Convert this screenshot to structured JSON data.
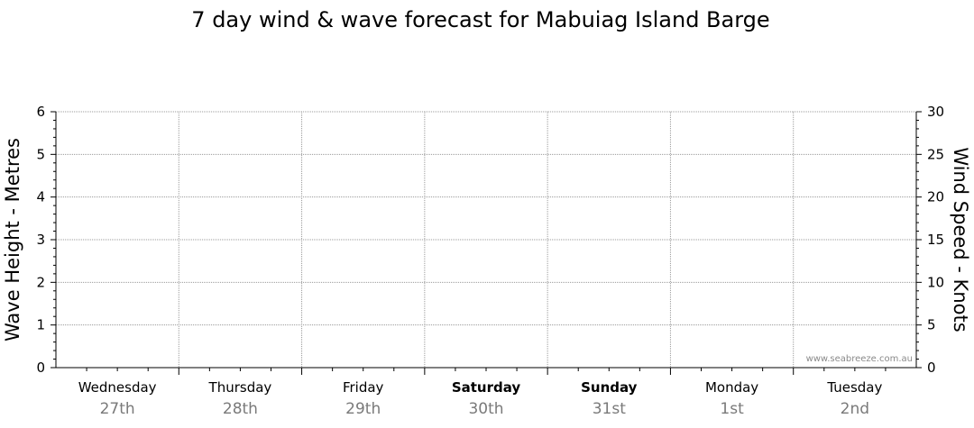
{
  "chart_data": {
    "type": "line",
    "title": "7 day wind & wave forecast for Mabuiag Island Barge",
    "left_axis": {
      "label": "Wave Height - Metres",
      "min": 0,
      "max": 6,
      "ticks": [
        0,
        1,
        2,
        3,
        4,
        5,
        6
      ]
    },
    "right_axis": {
      "label": "Wind Speed - Knots",
      "min": 0,
      "max": 30,
      "ticks": [
        0,
        5,
        10,
        15,
        20,
        25,
        30
      ]
    },
    "days": [
      {
        "day": "Wednesday",
        "date": "27th",
        "weekend": false
      },
      {
        "day": "Thursday",
        "date": "28th",
        "weekend": false
      },
      {
        "day": "Friday",
        "date": "29th",
        "weekend": false
      },
      {
        "day": "Saturday",
        "date": "30th",
        "weekend": true
      },
      {
        "day": "Sunday",
        "date": "31st",
        "weekend": true
      },
      {
        "day": "Monday",
        "date": "1st",
        "weekend": false
      },
      {
        "day": "Tuesday",
        "date": "2nd",
        "weekend": false
      }
    ],
    "series": [],
    "grid": true,
    "watermark": "www.seabreeze.com.au"
  }
}
